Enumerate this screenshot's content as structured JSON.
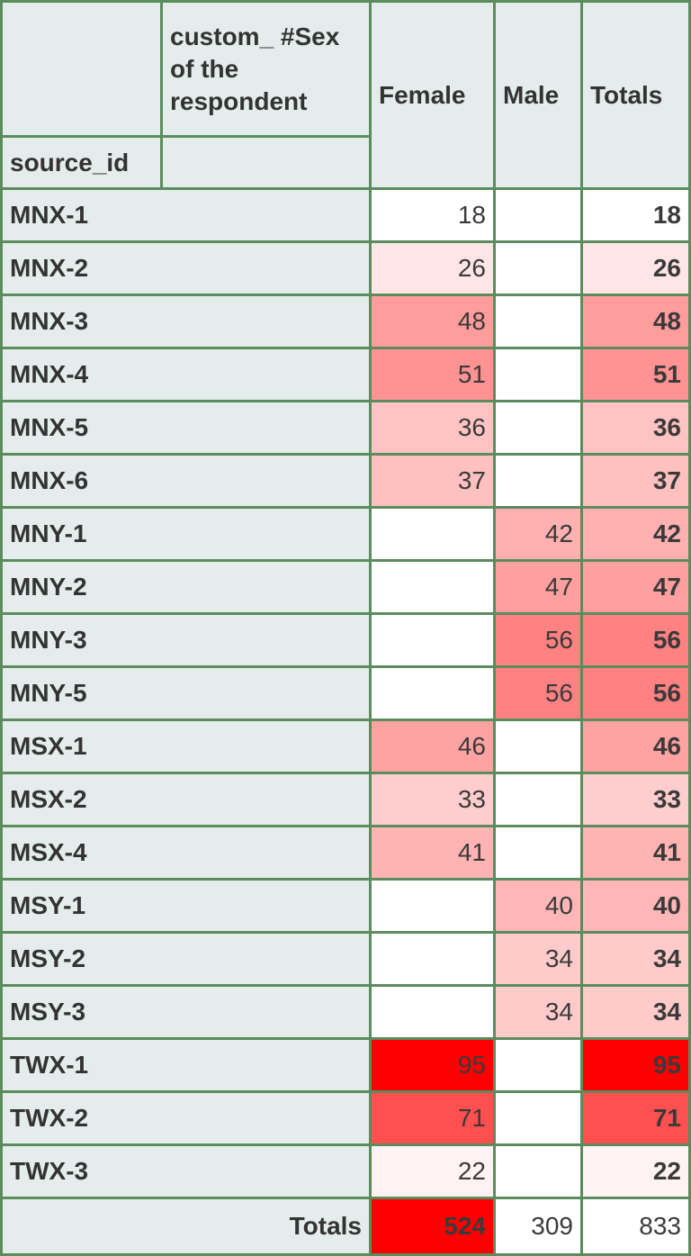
{
  "header": {
    "col_dim_label": "custom_ #Sex of the respondent",
    "row_dim_label": "source_id",
    "columns": [
      "Female",
      "Male",
      "Totals"
    ]
  },
  "rows": [
    {
      "id": "MNX-1",
      "female": 18,
      "male": null,
      "total": 18
    },
    {
      "id": "MNX-2",
      "female": 26,
      "male": null,
      "total": 26
    },
    {
      "id": "MNX-3",
      "female": 48,
      "male": null,
      "total": 48
    },
    {
      "id": "MNX-4",
      "female": 51,
      "male": null,
      "total": 51
    },
    {
      "id": "MNX-5",
      "female": 36,
      "male": null,
      "total": 36
    },
    {
      "id": "MNX-6",
      "female": 37,
      "male": null,
      "total": 37
    },
    {
      "id": "MNY-1",
      "female": null,
      "male": 42,
      "total": 42
    },
    {
      "id": "MNY-2",
      "female": null,
      "male": 47,
      "total": 47
    },
    {
      "id": "MNY-3",
      "female": null,
      "male": 56,
      "total": 56
    },
    {
      "id": "MNY-5",
      "female": null,
      "male": 56,
      "total": 56
    },
    {
      "id": "MSX-1",
      "female": 46,
      "male": null,
      "total": 46
    },
    {
      "id": "MSX-2",
      "female": 33,
      "male": null,
      "total": 33
    },
    {
      "id": "MSX-4",
      "female": 41,
      "male": null,
      "total": 41
    },
    {
      "id": "MSY-1",
      "female": null,
      "male": 40,
      "total": 40
    },
    {
      "id": "MSY-2",
      "female": null,
      "male": 34,
      "total": 34
    },
    {
      "id": "MSY-3",
      "female": null,
      "male": 34,
      "total": 34
    },
    {
      "id": "TWX-1",
      "female": 95,
      "male": null,
      "total": 95
    },
    {
      "id": "TWX-2",
      "female": 71,
      "male": null,
      "total": 71
    },
    {
      "id": "TWX-3",
      "female": 22,
      "male": null,
      "total": 22
    }
  ],
  "totals": {
    "label": "Totals",
    "female": 524,
    "male": 309,
    "total": 833
  },
  "heatmap": {
    "low_color": "#ffffff",
    "high_color": "#ff0000"
  }
}
